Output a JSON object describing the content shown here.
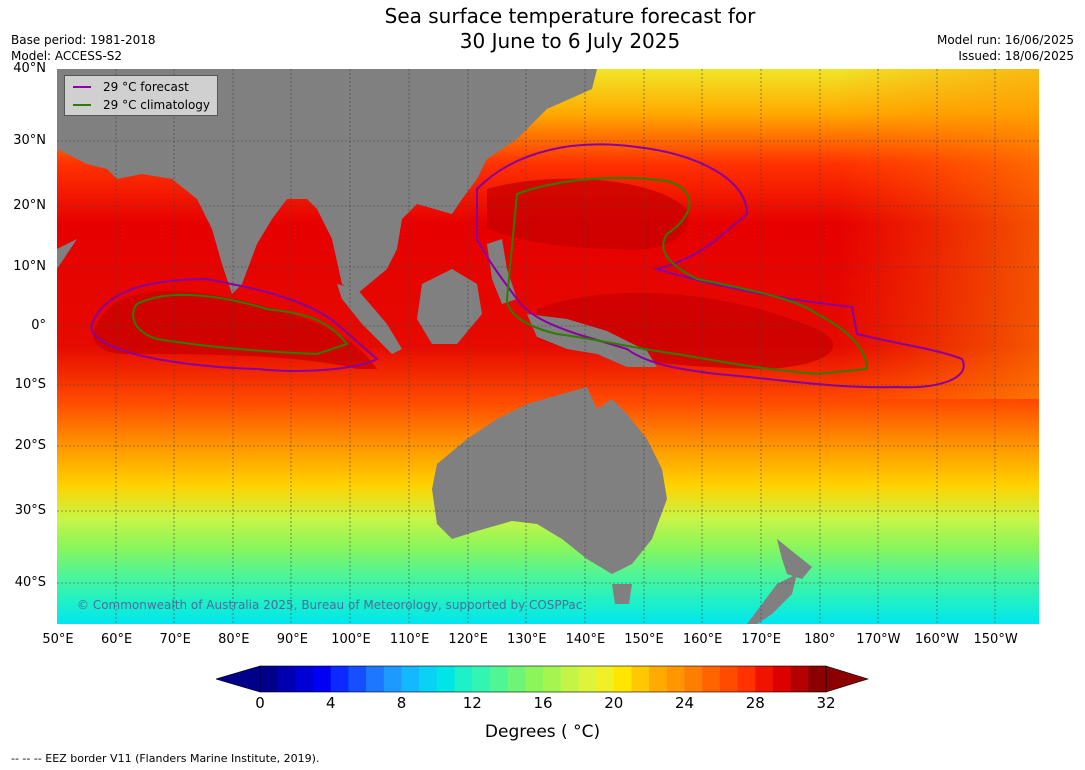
{
  "header": {
    "title_line1": "Sea surface temperature forecast for",
    "title_line2": "30 June to 6 July 2025",
    "base_period": "Base period: 1981-2018",
    "model": "Model: ACCESS-S2",
    "model_run": "Model run: 16/06/2025",
    "issued": "Issued: 18/06/2025"
  },
  "legend": {
    "forecast_label": "29 °C  forecast",
    "climatology_label": "29 °C  climatology",
    "forecast_color": "#8b00a0",
    "climatology_color": "#2e7d00"
  },
  "map": {
    "latitude_labels": [
      "40°N",
      "30°N",
      "20°N",
      "10°N",
      "0°",
      "10°S",
      "20°S",
      "30°S",
      "40°S"
    ],
    "longitude_labels": [
      "50°E",
      "60°E",
      "70°E",
      "80°E",
      "90°E",
      "100°E",
      "110°E",
      "120°E",
      "130°E",
      "140°E",
      "150°E",
      "160°E",
      "170°E",
      "180°",
      "170°W",
      "160°W",
      "150°W"
    ],
    "land_color": "#808080",
    "copyright": "© Commonwealth of Australia 2025, Bureau of Meteorology, supported by COSPPac"
  },
  "colorbar": {
    "tick_labels": [
      "0",
      "4",
      "8",
      "12",
      "16",
      "20",
      "24",
      "28",
      "32"
    ],
    "title": "Degrees ( °C)",
    "min": 0,
    "max": 32,
    "step": 1,
    "colors": [
      "#00008b",
      "#0000b0",
      "#0000d5",
      "#0000f5",
      "#0a2aff",
      "#1450ff",
      "#1e78ff",
      "#1e9aff",
      "#14b8ff",
      "#0ad2f5",
      "#00e6e6",
      "#1ef0c8",
      "#32f5b4",
      "#50f596",
      "#6ef578",
      "#8cf55a",
      "#a5f550",
      "#c3f546",
      "#dcf53c",
      "#f0f028",
      "#ffe600",
      "#ffc800",
      "#ffaa00",
      "#ff9600",
      "#ff7d00",
      "#ff6400",
      "#ff4b00",
      "#ff3200",
      "#f01400",
      "#dc0000",
      "#b40000",
      "#8b0000"
    ]
  },
  "footnote": "--  --  -- EEZ border V11 (Flanders Marine Institute, 2019)."
}
